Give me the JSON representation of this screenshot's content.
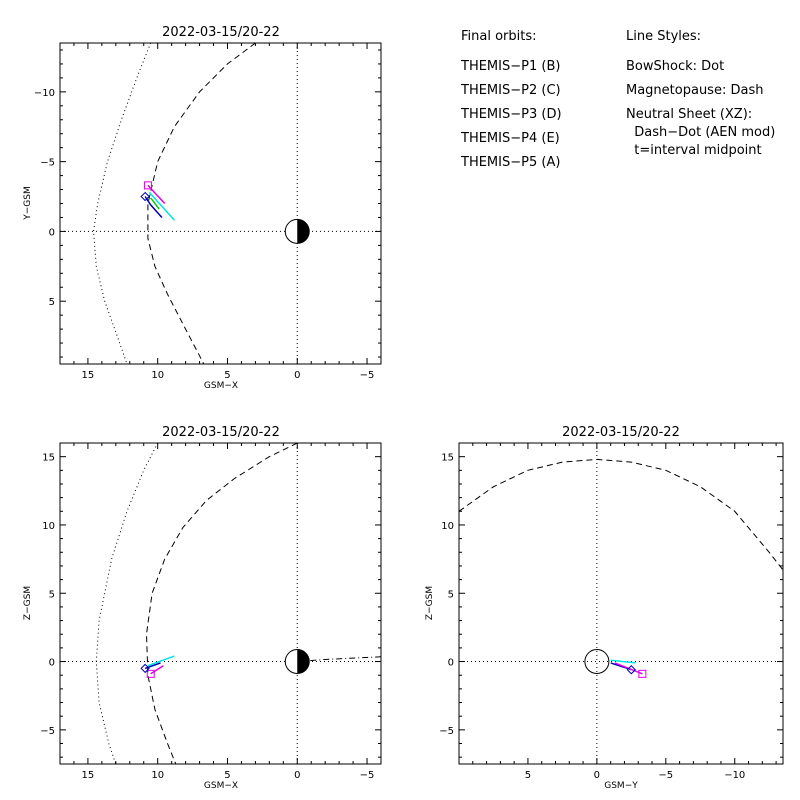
{
  "legend": {
    "orbits_title": "Final orbits:",
    "orbits": [
      {
        "label": "THEMIS−P1 (B)",
        "color": "#ff0000"
      },
      {
        "label": "THEMIS−P2 (C)",
        "color": "#00cc00"
      },
      {
        "label": "THEMIS−P3 (D)",
        "color": "#00e5e5"
      },
      {
        "label": "THEMIS−P4 (E)",
        "color": "#0000b4"
      },
      {
        "label": "THEMIS−P5 (A)",
        "color": "#e000e0"
      }
    ],
    "styles_title": "Line Styles:",
    "styles": [
      "BowShock: Dot",
      "Magnetopause: Dash",
      "Neutral Sheet (XZ):",
      "  Dash−Dot (AEN mod)",
      "  t=interval midpoint"
    ]
  },
  "chart_data": [
    {
      "type": "line",
      "title": "2022-03-15/20-22",
      "xlabel": "GSM−X",
      "ylabel": "Y−GSM",
      "xlim": [
        17,
        -6
      ],
      "ylim": [
        9.5,
        -13.5
      ],
      "x_ticks": [
        15,
        10,
        5,
        0,
        -5
      ],
      "x_tick_labels": [
        "15",
        "10",
        "5",
        "0",
        "−5"
      ],
      "y_ticks": [
        -10,
        -5,
        0,
        5
      ],
      "y_tick_labels": [
        "−10",
        "−5",
        "0",
        "5"
      ],
      "grid": "zero-lines dotted",
      "series": [
        {
          "role": "bow_shock",
          "style": "dot",
          "x": [
            10.5,
            11.5,
            12.6,
            13.6,
            14.3,
            14.6,
            14.4,
            13.8,
            12.9,
            12.2
          ],
          "y": [
            -13.5,
            -11.0,
            -8.0,
            -5.0,
            -2.0,
            0.0,
            2.5,
            5.0,
            7.5,
            9.5
          ]
        },
        {
          "role": "magnetopause",
          "style": "dash",
          "x": [
            3.0,
            5.0,
            7.0,
            8.8,
            10.0,
            10.7,
            10.7,
            10.2,
            9.3,
            8.0,
            6.7
          ],
          "y": [
            -13.5,
            -12.0,
            -10.0,
            -7.5,
            -5.0,
            -2.0,
            0.5,
            2.5,
            4.5,
            7.0,
            9.5
          ]
        },
        {
          "role": "orbit",
          "name": "THEMIS−P3 (D)",
          "color": "#00e5e5",
          "x": [
            10.6,
            8.8
          ],
          "y": [
            -2.8,
            -0.8
          ]
        },
        {
          "role": "orbit",
          "name": "THEMIS−P5 (A)",
          "color": "#e000e0",
          "x": [
            10.7,
            9.5
          ],
          "y": [
            -3.3,
            -2.0
          ]
        },
        {
          "role": "orbit",
          "name": "THEMIS−P4 (E)",
          "color": "#0000b4",
          "x": [
            10.9,
            10.5,
            9.7
          ],
          "y": [
            -2.5,
            -1.9,
            -1.0
          ]
        },
        {
          "role": "orbit",
          "name": "THEMIS−P2 (C)",
          "color": "#00cc00",
          "x": [
            10.5,
            9.9
          ],
          "y": [
            -2.4,
            -1.6
          ]
        }
      ],
      "markers": [
        {
          "name": "THEMIS−P5 (A)",
          "shape": "square",
          "color": "#e000e0",
          "x": 10.7,
          "y": -3.3
        },
        {
          "name": "THEMIS−P4 (E)",
          "shape": "diamond",
          "color": "#0000b4",
          "x": 10.9,
          "y": -2.5
        }
      ]
    },
    {
      "type": "line",
      "title": "2022-03-15/20-22",
      "xlabel": "GSM−X",
      "ylabel": "Z−GSM",
      "xlim": [
        17,
        -6
      ],
      "ylim": [
        -7.5,
        16
      ],
      "x_ticks": [
        15,
        10,
        5,
        0,
        -5
      ],
      "x_tick_labels": [
        "15",
        "10",
        "5",
        "0",
        "−5"
      ],
      "y_ticks": [
        -5,
        0,
        5,
        10,
        15
      ],
      "y_tick_labels": [
        "−5",
        "0",
        "5",
        "10",
        "15"
      ],
      "grid": "zero-lines dotted",
      "series": [
        {
          "role": "bow_shock",
          "style": "dot",
          "x": [
            10.0,
            11.0,
            12.2,
            13.3,
            14.2,
            14.4,
            14.2,
            13.5,
            13.0
          ],
          "y": [
            16.0,
            14.0,
            11.0,
            7.5,
            3.0,
            0.0,
            -3.0,
            -6.0,
            -7.5
          ]
        },
        {
          "role": "magnetopause",
          "style": "dash",
          "x": [
            0.0,
            2.0,
            4.5,
            6.5,
            8.2,
            9.5,
            10.4,
            10.8,
            10.7,
            10.2,
            9.3,
            8.7
          ],
          "y": [
            16.0,
            15.0,
            13.4,
            11.8,
            9.8,
            7.5,
            5.0,
            2.0,
            -1.0,
            -3.5,
            -6.0,
            -7.5
          ]
        },
        {
          "role": "neutral_sheet",
          "style": "dash-dot",
          "x": [
            0.0,
            -2.0,
            -4.0,
            -6.0
          ],
          "y": [
            0.0,
            0.15,
            0.25,
            0.35
          ]
        },
        {
          "role": "orbit",
          "name": "THEMIS−P3 (D)",
          "color": "#00e5e5",
          "x": [
            10.7,
            8.8
          ],
          "y": [
            -0.3,
            0.4
          ]
        },
        {
          "role": "orbit",
          "name": "THEMIS−P5 (A)",
          "color": "#e000e0",
          "x": [
            10.5,
            9.6
          ],
          "y": [
            -0.9,
            -0.3
          ]
        },
        {
          "role": "orbit",
          "name": "THEMIS−P4 (E)",
          "color": "#0000b4",
          "x": [
            10.9,
            9.8
          ],
          "y": [
            -0.5,
            -0.1
          ]
        }
      ],
      "markers": [
        {
          "name": "THEMIS−P5 (A)",
          "shape": "square",
          "color": "#e000e0",
          "x": 10.5,
          "y": -0.9
        },
        {
          "name": "THEMIS−P4 (E)",
          "shape": "diamond",
          "color": "#0000b4",
          "x": 10.9,
          "y": -0.5
        }
      ]
    },
    {
      "type": "line",
      "title": "2022-03-15/20-22",
      "xlabel": "GSM−Y",
      "ylabel": "Z−GSM",
      "xlim": [
        10,
        -13.5
      ],
      "ylim": [
        -7.5,
        16
      ],
      "x_ticks": [
        5,
        0,
        -5,
        -10
      ],
      "x_tick_labels": [
        "5",
        "0",
        "−5",
        "−10"
      ],
      "y_ticks": [
        -5,
        0,
        5,
        10,
        15
      ],
      "y_tick_labels": [
        "−5",
        "0",
        "5",
        "10",
        "15"
      ],
      "grid": "zero-lines dotted",
      "series": [
        {
          "role": "magnetopause",
          "style": "dash",
          "x": [
            10.0,
            7.5,
            5.0,
            2.5,
            0.0,
            -2.5,
            -5.0,
            -7.5,
            -10.0,
            -12.5,
            -13.5
          ],
          "y": [
            11.0,
            12.8,
            14.0,
            14.6,
            14.8,
            14.6,
            14.0,
            12.8,
            11.0,
            8.0,
            6.7
          ]
        },
        {
          "role": "orbit",
          "name": "THEMIS−P3 (D)",
          "color": "#00e5e5",
          "x": [
            -1.0,
            -2.8
          ],
          "y": [
            0.1,
            -0.1
          ]
        },
        {
          "role": "orbit",
          "name": "THEMIS−P4 (E)",
          "color": "#0000b4",
          "x": [
            -1.0,
            -2.5
          ],
          "y": [
            -0.1,
            -0.6
          ]
        },
        {
          "role": "orbit",
          "name": "THEMIS−P5 (A)",
          "color": "#e000e0",
          "x": [
            -1.3,
            -3.3
          ],
          "y": [
            -0.1,
            -0.9
          ]
        }
      ],
      "markers": [
        {
          "name": "THEMIS−P5 (A)",
          "shape": "square",
          "color": "#e000e0",
          "x": -3.3,
          "y": -0.9
        },
        {
          "name": "THEMIS−P4 (E)",
          "shape": "diamond",
          "color": "#0000b4",
          "x": -2.5,
          "y": -0.6
        }
      ]
    }
  ]
}
